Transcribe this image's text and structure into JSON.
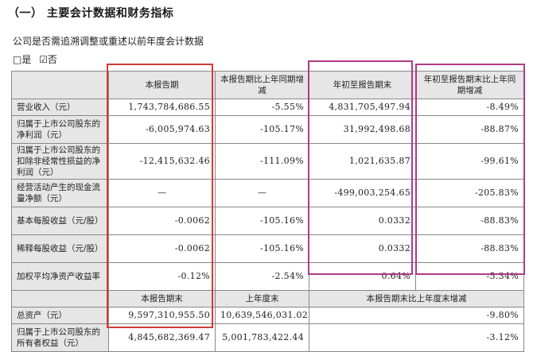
{
  "heading": "（一）  主要会计数据和财务指标",
  "subtitle": "公司是否需追溯调整或重述以前年度会计数据",
  "checks": {
    "no_box": "□是",
    "yes_box": "☑否"
  },
  "table": {
    "headers": [
      "",
      "本报告期",
      "本报告期比上年同期增减",
      "年初至报告期末",
      "年初至报告期末比上年同期增减"
    ],
    "rows": [
      {
        "label": "营业收入（元）",
        "c1": "1,743,784,686.55",
        "c2": "-5.55%",
        "c3": "4,831,705,497.94",
        "c4": "-8.49%"
      },
      {
        "label": "归属于上市公司股东的净利润（元）",
        "c1": "-6,005,974.63",
        "c2": "-105.17%",
        "c3": "31,992,498.68",
        "c4": "-88.87%"
      },
      {
        "label": "归属于上市公司股东的扣除非经常性损益的净利润（元）",
        "c1": "-12,415,632.46",
        "c2": "-111.09%",
        "c3": "1,021,635.87",
        "c4": "-99.61%"
      },
      {
        "label": "经营活动产生的现金流量净额（元）",
        "c1": "—",
        "c2": "—",
        "c3": "-499,003,254.65",
        "c4": "-205.83%"
      },
      {
        "label": "基本每股收益（元/股）",
        "c1": "-0.0062",
        "c2": "-105.16%",
        "c3": "0.0332",
        "c4": "-88.83%"
      },
      {
        "label": "稀释每股收益（元/股）",
        "c1": "-0.0062",
        "c2": "-105.16%",
        "c3": "0.0332",
        "c4": "-88.83%"
      },
      {
        "label": "加权平均净资产收益率",
        "c1": "-0.12%",
        "c2": "-2.54%",
        "c3": "0.64%",
        "c4": "-5.34%"
      }
    ],
    "sub_headers": [
      "",
      "本报告期末",
      "上年度末",
      "本报告期末比上年度末增减"
    ],
    "bottom_rows": [
      {
        "label": "总资产（元）",
        "c1": "9,597,310,955.50",
        "c2": "10,639,546,031.02",
        "c3": "-9.80%"
      },
      {
        "label": "归属于上市公司股东的所有者权益（元）",
        "c1": "4,845,682,369.47",
        "c2": "5,001,783,422.44",
        "c3": "-3.12%"
      }
    ]
  },
  "highlight_colors": {
    "red": "#d23a3a",
    "purple": "#b03a86"
  }
}
